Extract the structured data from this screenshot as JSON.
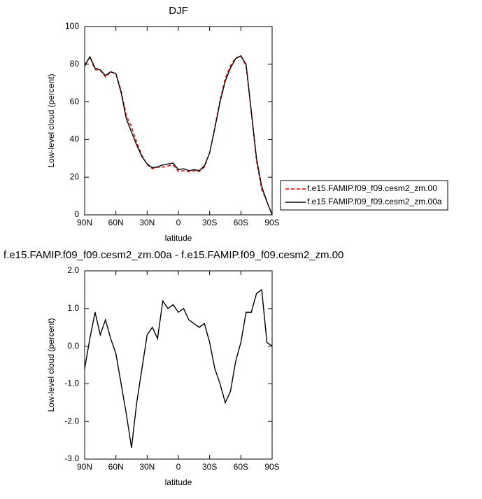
{
  "chart_data": [
    {
      "type": "line",
      "title": "DJF",
      "x_label": "latitude",
      "y_label": "Low-level cloud (percent)",
      "x": [
        90,
        85,
        80,
        75,
        70,
        65,
        60,
        55,
        50,
        45,
        40,
        35,
        30,
        25,
        20,
        15,
        10,
        5,
        0,
        -5,
        -10,
        -15,
        -20,
        -25,
        -30,
        -35,
        -40,
        -45,
        -50,
        -55,
        -60,
        -65,
        -70,
        -75,
        -80,
        -85,
        -90
      ],
      "series": [
        {
          "name": "f.e15.FAMIP.f09_f09.cesm2_zm.00",
          "color": "#e00000",
          "line_style": "dashed",
          "values": [
            79.6,
            83.8,
            77.1,
            76.7,
            73.3,
            75.8,
            75.2,
            66.0,
            52.8,
            46.7,
            38.5,
            31.6,
            26.7,
            24.5,
            25.3,
            25.3,
            26.0,
            26.4,
            23.1,
            23.5,
            22.8,
            23.4,
            23.0,
            25.4,
            32.9,
            46.6,
            61.0,
            72.5,
            79.2,
            83.4,
            84.4,
            79.1,
            54.1,
            28.6,
            13.5,
            6.9,
            0.0
          ]
        },
        {
          "name": "f.e15.FAMIP.f09_f09.cesm2_zm.00a",
          "color": "#000000",
          "line_style": "solid",
          "values": [
            79,
            84,
            78,
            77,
            74,
            76,
            75,
            65,
            51,
            44,
            37,
            31,
            27,
            25,
            25.5,
            26.5,
            27,
            27.5,
            24,
            24.5,
            23.5,
            24,
            23.5,
            26,
            33,
            46,
            60,
            71,
            78,
            83,
            84.5,
            80,
            55,
            30,
            15,
            7,
            0
          ]
        }
      ],
      "xlim": [
        90,
        -90
      ],
      "xticks": [
        {
          "value": 90,
          "label": "90N"
        },
        {
          "value": 60,
          "label": "60N"
        },
        {
          "value": 30,
          "label": "30N"
        },
        0,
        {
          "value": -30,
          "label": "30S"
        },
        {
          "value": -60,
          "label": "60S"
        },
        {
          "value": -90,
          "label": "90S"
        }
      ],
      "ylim": [
        0,
        100
      ],
      "yticks": [
        0,
        20,
        40,
        60,
        80,
        100
      ],
      "legend": "right"
    },
    {
      "type": "line",
      "title": "f.e15.FAMIP.f09_f09.cesm2_zm.00a - f.e15.FAMIP.f09_f09.cesm2_zm.00",
      "x_label": "latitude",
      "y_label": "Low-level cloud (percent)",
      "x": [
        90,
        85,
        80,
        75,
        70,
        65,
        60,
        55,
        50,
        45,
        40,
        35,
        30,
        25,
        20,
        15,
        10,
        5,
        0,
        -5,
        -10,
        -15,
        -20,
        -25,
        -30,
        -35,
        -40,
        -45,
        -50,
        -55,
        -60,
        -65,
        -70,
        -75,
        -80,
        -85,
        -90
      ],
      "series": [
        {
          "color": "#000000",
          "line_style": "solid",
          "values": [
            -0.6,
            0.2,
            0.9,
            0.3,
            0.7,
            0.2,
            -0.2,
            -1.0,
            -1.8,
            -2.7,
            -1.5,
            -0.6,
            0.3,
            0.5,
            0.2,
            1.2,
            1.0,
            1.1,
            0.9,
            1.0,
            0.7,
            0.6,
            0.5,
            0.6,
            0.1,
            -0.6,
            -1.0,
            -1.5,
            -1.2,
            -0.4,
            0.1,
            0.9,
            0.9,
            1.4,
            1.5,
            0.1,
            0.0
          ]
        }
      ],
      "xlim": [
        90,
        -90
      ],
      "xticks": [
        {
          "value": 90,
          "label": "90N"
        },
        {
          "value": 60,
          "label": "60N"
        },
        {
          "value": 30,
          "label": "30N"
        },
        0,
        {
          "value": -30,
          "label": "30S"
        },
        {
          "value": -60,
          "label": "60S"
        },
        {
          "value": -90,
          "label": "90S"
        }
      ],
      "ylim": [
        -3,
        2
      ],
      "yticks": [
        {
          "value": -3,
          "label": "-3.0"
        },
        {
          "value": -2,
          "label": "-2.0"
        },
        {
          "value": -1,
          "label": "-1.0"
        },
        {
          "value": 0,
          "label": "0.0"
        },
        {
          "value": 1,
          "label": "1.0"
        },
        {
          "value": 2,
          "label": "2.0"
        }
      ]
    }
  ]
}
